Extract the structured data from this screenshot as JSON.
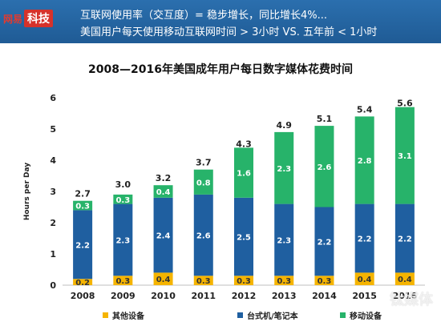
{
  "header": {
    "brand_a": "网易",
    "brand_b": "科技",
    "line1": "互联网使用率（交互度）= 稳步增长，同比增长4%...",
    "line2": "美国用户每天使用移动互联网时间 > 3小时    VS.   五年前 < 1小时"
  },
  "watermark": "钛媒体",
  "chart_data": {
    "type": "bar",
    "stacked": true,
    "title": "2008—2016年美国成年用户每日数字媒体花费时间",
    "xlabel": "",
    "ylabel": "Hours per Day",
    "ylim": [
      0,
      6
    ],
    "yticks": [
      "0",
      "1",
      "2",
      "3",
      "4",
      "5",
      "6"
    ],
    "grid": false,
    "legend_position": "bottom",
    "categories": [
      "2008",
      "2009",
      "2010",
      "2011",
      "2012",
      "2013",
      "2014",
      "2015",
      "2016"
    ],
    "series": [
      {
        "name": "其他设备",
        "color": "#f5b400",
        "values": [
          0.2,
          0.3,
          0.4,
          0.3,
          0.3,
          0.3,
          0.3,
          0.4,
          0.4
        ],
        "labels": [
          "0.2",
          "0.3",
          "0.4",
          "0.3",
          "0.3",
          "0.3",
          "0.3",
          "0.4",
          "0.4"
        ]
      },
      {
        "name": "台式机/笔记本",
        "color": "#1f5fa0",
        "values": [
          2.2,
          2.3,
          2.4,
          2.6,
          2.5,
          2.3,
          2.2,
          2.2,
          2.2
        ],
        "labels": [
          "2.2",
          "2.3",
          "2.4",
          "2.6",
          "2.5",
          "2.3",
          "2.2",
          "2.2",
          "2.2"
        ]
      },
      {
        "name": "移动设备",
        "color": "#27b36a",
        "values": [
          0.3,
          0.3,
          0.4,
          0.8,
          1.6,
          2.3,
          2.6,
          2.8,
          3.1
        ],
        "labels": [
          "0.3",
          "0.3",
          "0.4",
          "0.8",
          "1.6",
          "2.3",
          "2.6",
          "2.8",
          "3.1"
        ]
      }
    ],
    "totals": [
      "2.7",
      "3.0",
      "3.2",
      "3.7",
      "4.3",
      "4.9",
      "5.1",
      "5.4",
      "5.6"
    ],
    "total_values": [
      2.7,
      3.0,
      3.2,
      3.7,
      4.3,
      4.9,
      5.1,
      5.4,
      5.6
    ]
  }
}
